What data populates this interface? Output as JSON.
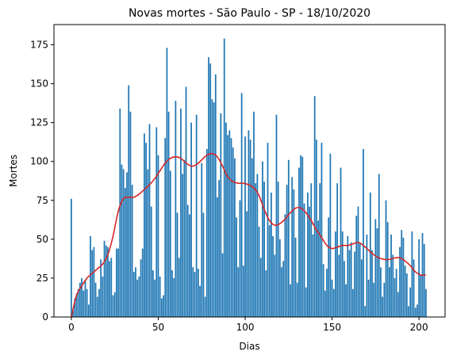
{
  "chart_data": {
    "type": "bar",
    "title": "Novas mortes - São Paulo - SP - 18/10/2020",
    "xlabel": "Dias",
    "ylabel": "Mortes",
    "xlim": [
      -10,
      215
    ],
    "ylim": [
      0,
      188
    ],
    "xticks": [
      0,
      50,
      100,
      150,
      200
    ],
    "yticks": [
      0,
      25,
      50,
      75,
      100,
      125,
      150,
      175
    ],
    "grid": false,
    "legend": "none",
    "colors": {
      "bars": "#1f77b4",
      "trend": "#d62728"
    },
    "series": [
      {
        "type": "bar",
        "x": [
          0,
          1,
          2,
          3,
          4,
          5,
          6,
          7,
          8,
          9,
          10,
          11,
          12,
          13,
          14,
          15,
          16,
          17,
          18,
          19,
          20,
          21,
          22,
          23,
          24,
          25,
          26,
          27,
          28,
          29,
          30,
          31,
          32,
          33,
          34,
          35,
          36,
          37,
          38,
          39,
          40,
          41,
          42,
          43,
          44,
          45,
          46,
          47,
          48,
          49,
          50,
          51,
          52,
          53,
          54,
          55,
          56,
          57,
          58,
          59,
          60,
          61,
          62,
          63,
          64,
          65,
          66,
          67,
          68,
          69,
          70,
          71,
          72,
          73,
          74,
          75,
          76,
          77,
          78,
          79,
          80,
          81,
          82,
          83,
          84,
          85,
          86,
          87,
          88,
          89,
          90,
          91,
          92,
          93,
          94,
          95,
          96,
          97,
          98,
          99,
          100,
          101,
          102,
          103,
          104,
          105,
          106,
          107,
          108,
          109,
          110,
          111,
          112,
          113,
          114,
          115,
          116,
          117,
          118,
          119,
          120,
          121,
          122,
          123,
          124,
          125,
          126,
          127,
          128,
          129,
          130,
          131,
          132,
          133,
          134,
          135,
          136,
          137,
          138,
          139,
          140,
          141,
          142,
          143,
          144,
          145,
          146,
          147,
          148,
          149,
          150,
          151,
          152,
          153,
          154,
          155,
          156,
          157,
          158,
          159,
          160,
          161,
          162,
          163,
          164,
          165,
          166,
          167,
          168,
          169,
          170,
          171,
          172,
          173,
          174,
          175,
          176,
          177,
          178,
          179,
          180,
          181,
          182,
          183,
          184,
          185,
          186,
          187,
          188,
          189,
          190,
          191,
          192,
          193,
          194,
          195,
          196,
          197,
          198,
          199,
          200,
          201,
          202,
          203,
          204
        ],
        "values": [
          76,
          4,
          12,
          15,
          18,
          22,
          25,
          17,
          24,
          18,
          8,
          52,
          43,
          45,
          22,
          13,
          18,
          37,
          26,
          49,
          46,
          45,
          36,
          38,
          14,
          16,
          44,
          44,
          134,
          98,
          95,
          83,
          93,
          149,
          132,
          85,
          29,
          32,
          24,
          26,
          37,
          44,
          118,
          112,
          95,
          124,
          71,
          30,
          24,
          122,
          104,
          26,
          12,
          14,
          115,
          173,
          132,
          94,
          30,
          25,
          139,
          67,
          38,
          134,
          92,
          101,
          148,
          72,
          66,
          125,
          32,
          29,
          130,
          31,
          20,
          99,
          67,
          13,
          108,
          167,
          163,
          140,
          138,
          156,
          77,
          88,
          131,
          41,
          179,
          125,
          117,
          120,
          115,
          109,
          102,
          64,
          32,
          75,
          144,
          33,
          116,
          68,
          120,
          114,
          102,
          132,
          86,
          92,
          58,
          38,
          100,
          87,
          30,
          112,
          59,
          80,
          52,
          40,
          130,
          87,
          50,
          32,
          36,
          66,
          85,
          101,
          21,
          90,
          82,
          51,
          22,
          96,
          104,
          103,
          73,
          19,
          80,
          71,
          86,
          53,
          142,
          114,
          62,
          86,
          112,
          34,
          17,
          31,
          64,
          105,
          24,
          18,
          55,
          86,
          40,
          96,
          55,
          36,
          21,
          52,
          43,
          48,
          18,
          42,
          65,
          71,
          47,
          37,
          108,
          7,
          53,
          24,
          80,
          43,
          22,
          63,
          57,
          92,
          32,
          13,
          22,
          75,
          61,
          32,
          53,
          40,
          25,
          31,
          16,
          45,
          56,
          51,
          33,
          28,
          7,
          19,
          55,
          37,
          6,
          8,
          50,
          27,
          54,
          47,
          18
        ]
      },
      {
        "type": "line",
        "x": [
          0,
          3,
          6,
          9,
          12,
          15,
          18,
          21,
          24,
          27,
          30,
          33,
          36,
          39,
          42,
          45,
          48,
          51,
          54,
          57,
          60,
          63,
          66,
          69,
          72,
          75,
          78,
          81,
          84,
          87,
          90,
          93,
          96,
          99,
          102,
          105,
          108,
          111,
          114,
          117,
          120,
          123,
          126,
          129,
          132,
          135,
          138,
          141,
          144,
          147,
          150,
          153,
          156,
          159,
          162,
          165,
          168,
          171,
          174,
          177,
          180,
          183,
          186,
          189,
          192,
          195,
          198,
          201,
          204
        ],
        "values": [
          0,
          14,
          20,
          25,
          28,
          31,
          34,
          40,
          52,
          68,
          76,
          77,
          77,
          79,
          82,
          85,
          89,
          94,
          99,
          102,
          103,
          102,
          99,
          97,
          98,
          101,
          104,
          105,
          103,
          97,
          90,
          87,
          86,
          86,
          85,
          83,
          78,
          69,
          62,
          59,
          60,
          63,
          67,
          70,
          70,
          67,
          62,
          56,
          51,
          46,
          44,
          45,
          46,
          46,
          47,
          48,
          46,
          43,
          40,
          38,
          37,
          37,
          38,
          38,
          36,
          33,
          29,
          27,
          27
        ]
      }
    ]
  }
}
